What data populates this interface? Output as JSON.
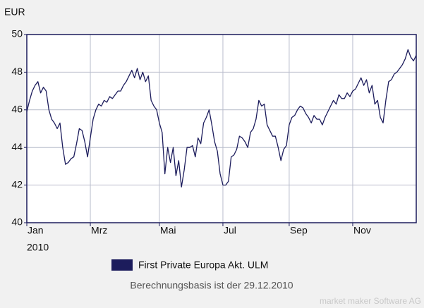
{
  "chart_data": {
    "type": "line",
    "y_label": "EUR",
    "x_sublabel": "2010",
    "note": "Berechnungsbasis ist der 29.12.2010",
    "watermark": "market maker Software AG",
    "categories": [
      "Jan",
      null,
      null,
      null,
      null,
      null,
      null,
      null,
      null,
      null,
      null,
      null,
      null,
      null,
      null,
      null,
      null,
      null,
      null,
      null,
      null,
      null,
      null,
      "Mrz",
      null,
      null,
      null,
      null,
      null,
      null,
      null,
      null,
      null,
      null,
      null,
      null,
      null,
      null,
      null,
      null,
      null,
      null,
      null,
      null,
      null,
      null,
      null,
      null,
      "Mai",
      null,
      null,
      null,
      null,
      null,
      null,
      null,
      null,
      null,
      null,
      null,
      null,
      null,
      null,
      null,
      null,
      null,
      null,
      null,
      null,
      null,
      null,
      "Jul",
      null,
      null,
      null,
      null,
      null,
      null,
      null,
      null,
      null,
      null,
      null,
      null,
      null,
      null,
      null,
      null,
      null,
      null,
      null,
      null,
      null,
      null,
      null,
      "Sep",
      null,
      null,
      null,
      null,
      null,
      null,
      null,
      null,
      null,
      null,
      null,
      null,
      null,
      null,
      null,
      null,
      null,
      null,
      null,
      null,
      null,
      null,
      "Nov",
      null,
      null,
      null,
      null,
      null,
      null,
      null,
      null,
      null,
      null,
      null,
      null,
      null,
      null,
      null,
      null,
      null,
      null,
      null,
      null,
      null,
      null,
      null
    ],
    "series": [
      {
        "name": "First Private Europa Akt. ULM",
        "color": "#1c1c5c",
        "values": [
          45.9,
          46.5,
          47.0,
          47.3,
          47.5,
          46.9,
          47.2,
          47.0,
          46.0,
          45.5,
          45.3,
          45.0,
          45.3,
          44.0,
          43.1,
          43.2,
          43.4,
          43.5,
          44.2,
          45.0,
          44.9,
          44.3,
          43.5,
          44.5,
          45.5,
          46.0,
          46.3,
          46.2,
          46.5,
          46.4,
          46.7,
          46.6,
          46.8,
          47.0,
          47.0,
          47.3,
          47.5,
          47.8,
          48.1,
          47.7,
          48.2,
          47.6,
          48.0,
          47.5,
          47.8,
          46.5,
          46.2,
          46.0,
          45.3,
          44.8,
          42.6,
          44.0,
          43.2,
          44.0,
          42.5,
          43.3,
          41.9,
          42.8,
          44.0,
          44.0,
          44.1,
          43.5,
          44.5,
          44.2,
          45.3,
          45.6,
          46.0,
          45.2,
          44.3,
          43.8,
          42.6,
          42.0,
          42.0,
          42.2,
          43.5,
          43.6,
          43.9,
          44.6,
          44.5,
          44.3,
          44.0,
          44.8,
          45.0,
          45.5,
          46.5,
          46.2,
          46.3,
          45.2,
          44.9,
          44.6,
          44.6,
          44.0,
          43.3,
          43.9,
          44.1,
          45.2,
          45.6,
          45.7,
          46.0,
          46.2,
          46.1,
          45.8,
          45.6,
          45.3,
          45.7,
          45.5,
          45.5,
          45.2,
          45.6,
          45.9,
          46.2,
          46.5,
          46.3,
          46.8,
          46.6,
          46.6,
          46.9,
          46.7,
          47.0,
          47.1,
          47.4,
          47.7,
          47.3,
          47.6,
          46.9,
          47.3,
          46.3,
          46.5,
          45.6,
          45.3,
          46.5,
          47.5,
          47.6,
          47.9,
          48.0,
          48.2,
          48.4,
          48.7,
          49.2,
          48.8,
          48.6,
          48.9
        ]
      }
    ],
    "ylim": [
      40,
      50
    ],
    "yticks": [
      40,
      42,
      44,
      46,
      48,
      50
    ],
    "grid": true
  }
}
